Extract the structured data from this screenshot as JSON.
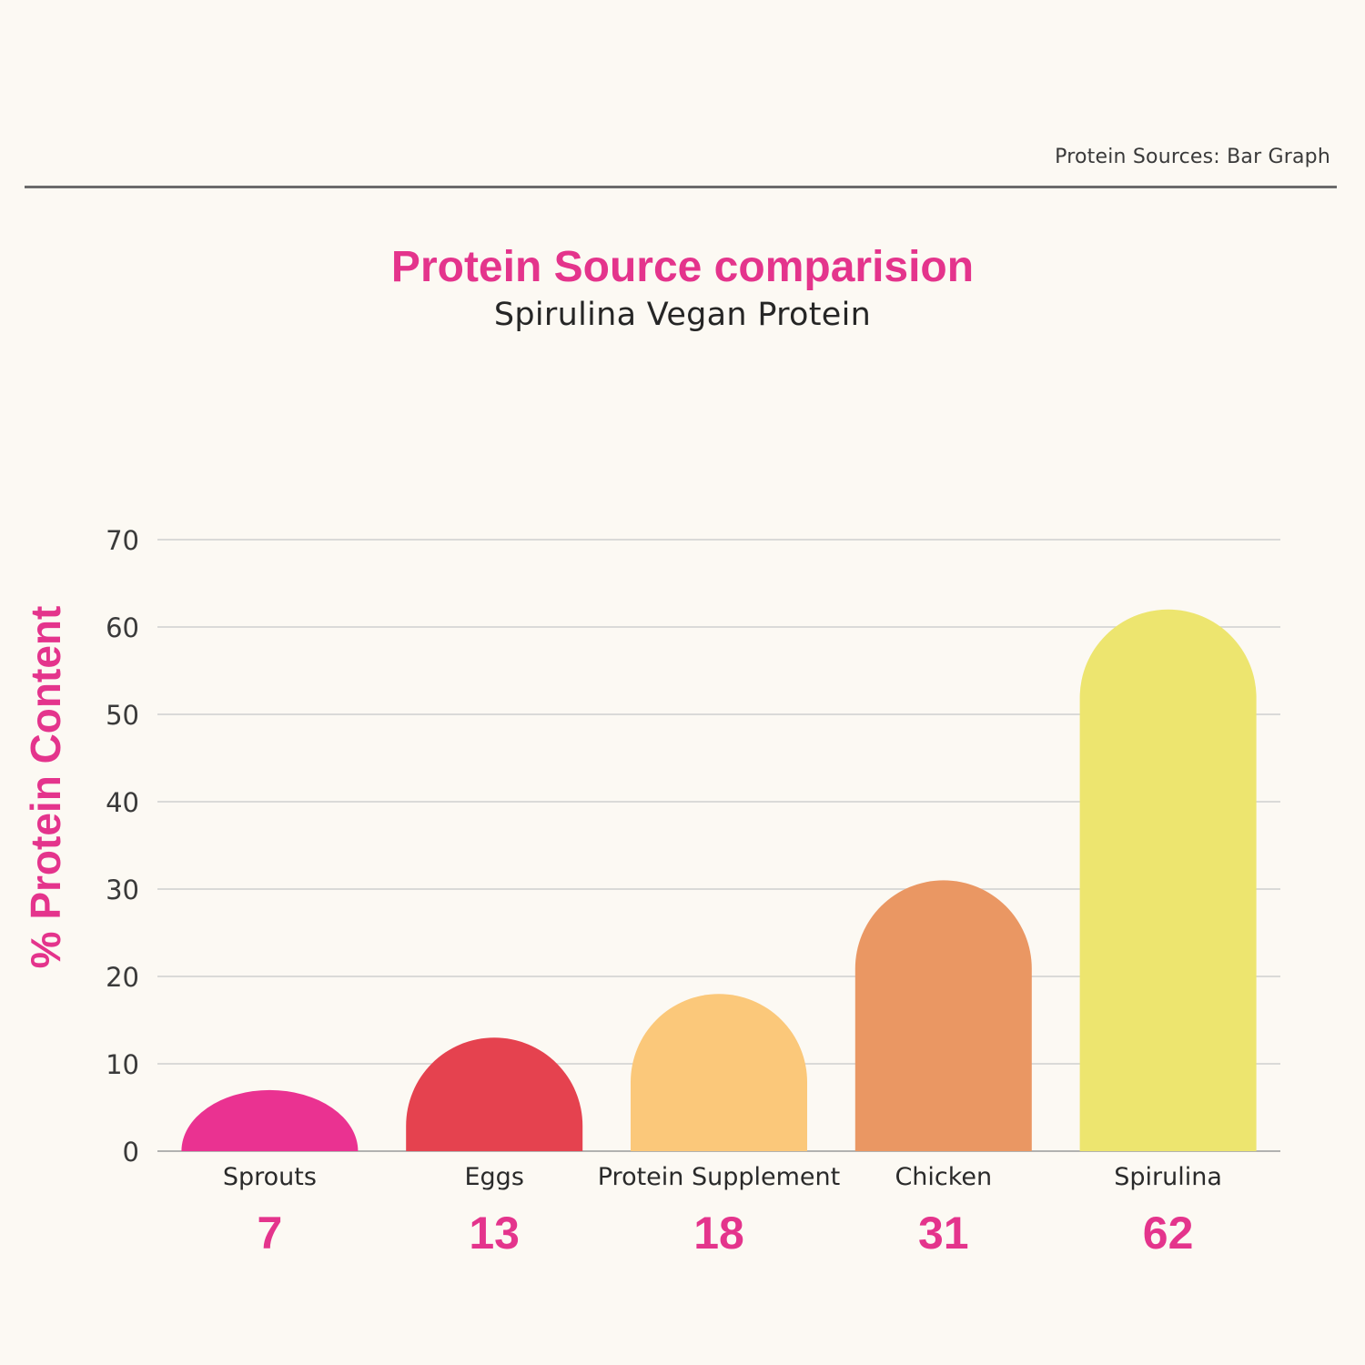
{
  "header": {
    "caption": "Protein Sources: Bar Graph"
  },
  "chart_data": {
    "type": "bar",
    "title": "Protein Source comparision",
    "subtitle": "Spirulina Vegan Protein",
    "xlabel": "",
    "ylabel": "% Protein Content",
    "categories": [
      "Sprouts",
      "Eggs",
      "Protein Supplement",
      "Chicken",
      "Spirulina"
    ],
    "values": [
      7,
      13,
      18,
      31,
      62
    ],
    "value_labels": [
      "7",
      "13",
      "18",
      "31",
      "62"
    ],
    "colors": [
      "#ea3291",
      "#e5424f",
      "#fbc87a",
      "#ea9763",
      "#ede56f"
    ],
    "ylim": [
      0,
      70
    ],
    "yticks": [
      "0",
      "10",
      "20",
      "30",
      "40",
      "50",
      "60",
      "70"
    ],
    "grid": true,
    "bar_shape": "rounded-top",
    "value_label_color": "#e4348c",
    "gridline_color": "#cfcfcf"
  }
}
